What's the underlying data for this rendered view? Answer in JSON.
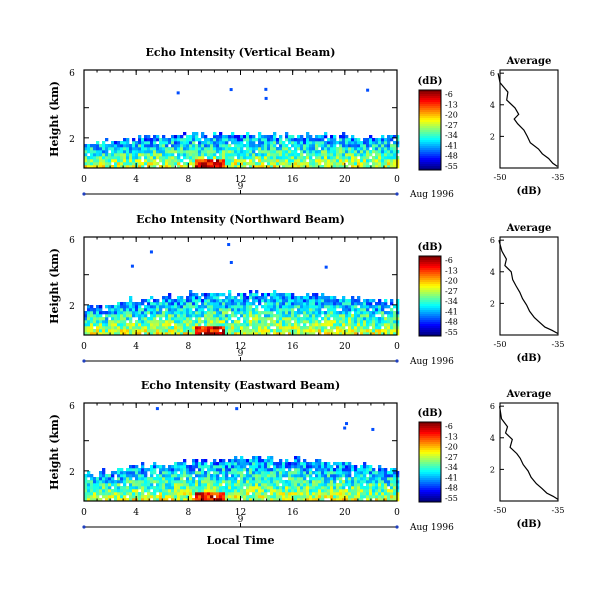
{
  "chart_data": [
    {
      "type": "heatmap",
      "title": "Echo Intensity (Vertical Beam)",
      "ylabel": "Height (km)",
      "x": [
        0,
        4,
        8,
        12,
        16,
        20,
        0
      ],
      "xlim": [
        0,
        24
      ],
      "y_ticks": [
        "2",
        "6"
      ],
      "y_ticks_visible": [
        "2",
        "",
        "6"
      ],
      "date_ticks": [
        "9"
      ],
      "date_label": "Aug 1996",
      "colorbar": {
        "unit": "(dB)",
        "ticks": [
          "-6",
          "-13",
          "-20",
          "-27",
          "-34",
          "-41",
          "-48",
          "-55"
        ]
      },
      "profile": {
        "title": "Average",
        "xlabel": "(dB)",
        "x_ticks": [
          "-50",
          "-35"
        ],
        "y_ticks": [
          "2",
          "4",
          "6"
        ],
        "x_profile": [
          -51,
          -50.5,
          -48.4,
          -48.7,
          -46.5,
          -45.5,
          -46.7,
          -45.8,
          -44.1,
          -43.2,
          -42.4,
          -40.2,
          -39.2,
          -37.5,
          -36.4,
          -35.2
        ],
        "y_profile": [
          6.0,
          5.4,
          4.8,
          4.3,
          3.8,
          3.4,
          3.1,
          2.8,
          2.4,
          2.0,
          1.6,
          1.2,
          0.9,
          0.6,
          0.3,
          0.1
        ]
      }
    },
    {
      "type": "heatmap",
      "title": "Echo Intensity (Northward Beam)",
      "ylabel": "Height (km)",
      "x": [
        0,
        4,
        8,
        12,
        16,
        20,
        0
      ],
      "y_ticks_visible": [
        "2",
        "",
        "6"
      ],
      "date_ticks": [
        "9"
      ],
      "date_label": "Aug 1996",
      "colorbar": {
        "unit": "(dB)",
        "ticks": [
          "-6",
          "-13",
          "-20",
          "-27",
          "-34",
          "-41",
          "-48",
          "-55"
        ]
      },
      "profile": {
        "title": "Average",
        "xlabel": "(dB)",
        "x_ticks": [
          "-50",
          "-35"
        ],
        "y_ticks": [
          "2",
          "4",
          "6"
        ],
        "x_profile": [
          -50.8,
          -50,
          -48.8,
          -49.2,
          -47.5,
          -47.1,
          -46.2,
          -45.2,
          -44.5,
          -43.4,
          -42.6,
          -41.3,
          -39.9,
          -38.5,
          -36.6,
          -35.1
        ],
        "y_profile": [
          6.0,
          5.3,
          4.8,
          4.4,
          4.0,
          3.5,
          3.1,
          2.7,
          2.3,
          1.9,
          1.5,
          1.1,
          0.8,
          0.5,
          0.3,
          0.1
        ]
      }
    },
    {
      "type": "heatmap",
      "title": "Echo Intensity (Eastward Beam)",
      "ylabel": "Height (km)",
      "x": [
        0,
        4,
        8,
        12,
        16,
        20,
        0
      ],
      "y_ticks_visible": [
        "2",
        "",
        "6"
      ],
      "date_ticks": [
        "9"
      ],
      "date_label": "Aug 1996",
      "xlabel": "Local Time",
      "colorbar": {
        "unit": "(dB)",
        "ticks": [
          "-6",
          "-13",
          "-20",
          "-27",
          "-34",
          "-41",
          "-48",
          "-55"
        ]
      },
      "profile": {
        "title": "Average",
        "xlabel": "(dB)",
        "x_ticks": [
          "-50",
          "-35"
        ],
        "y_ticks": [
          "2",
          "4",
          "6"
        ],
        "x_profile": [
          -50.6,
          -50.1,
          -48.5,
          -49.0,
          -47.2,
          -47.8,
          -46.0,
          -45.1,
          -44.3,
          -43.0,
          -42.2,
          -40.8,
          -39.3,
          -38.0,
          -36.3,
          -35.0
        ],
        "y_profile": [
          6.0,
          5.2,
          4.7,
          4.3,
          3.9,
          3.4,
          3.0,
          2.7,
          2.3,
          1.9,
          1.5,
          1.1,
          0.8,
          0.5,
          0.3,
          0.1
        ]
      }
    }
  ]
}
